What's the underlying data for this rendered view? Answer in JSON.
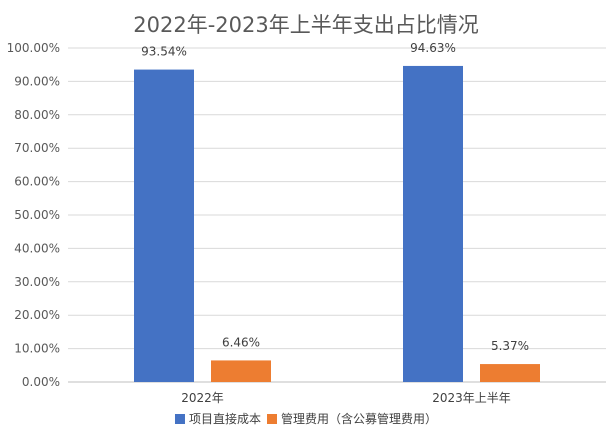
{
  "chart_data": {
    "type": "bar",
    "title": "2022年-2023年上半年支出占比情况",
    "categories": [
      "2022年",
      "2023年上半年"
    ],
    "series": [
      {
        "name": "项目直接成本",
        "values": [
          93.54,
          94.63
        ],
        "labels": [
          "93.54%",
          "94.63%"
        ],
        "color": "#4472C4"
      },
      {
        "name": "管理费用（含公募管理费用）",
        "values": [
          6.46,
          5.37
        ],
        "labels": [
          "6.46%",
          "5.37%"
        ],
        "color": "#ED7D31"
      }
    ],
    "ylim": [
      0,
      100
    ],
    "yticks": [
      0,
      10,
      20,
      30,
      40,
      50,
      60,
      70,
      80,
      90,
      100
    ],
    "ytick_labels": [
      "0.00%",
      "10.00%",
      "20.00%",
      "30.00%",
      "40.00%",
      "50.00%",
      "60.00%",
      "70.00%",
      "80.00%",
      "90.00%",
      "100.00%"
    ],
    "grid": true,
    "legend_position": "bottom",
    "xlabel": "",
    "ylabel": ""
  }
}
